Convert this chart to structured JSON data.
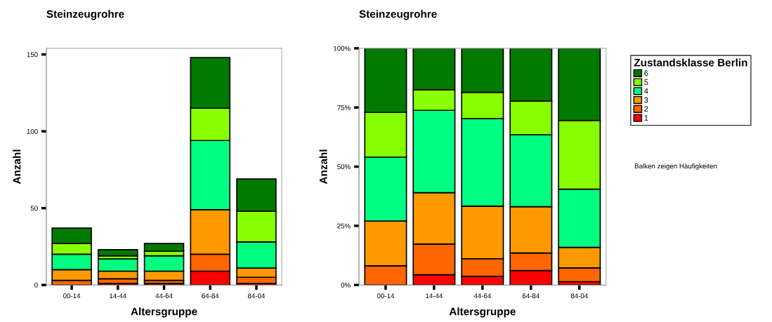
{
  "chart_data": [
    {
      "type": "bar",
      "title": "Steinzeugrohre",
      "xlabel": "Altersgruppe",
      "ylabel": "Anzahl",
      "stacked": true,
      "categories": [
        "00-14",
        "14-44",
        "44-64",
        "64-84",
        "84-04"
      ],
      "ylim": [
        0,
        154
      ],
      "yticks": [
        0,
        50,
        100,
        150
      ],
      "grid": false,
      "legend": "right",
      "series": [
        {
          "name": "1",
          "color": "#ff0000",
          "values": [
            0,
            1,
            1,
            9,
            1
          ]
        },
        {
          "name": "2",
          "color": "#ff6600",
          "values": [
            3,
            3,
            2,
            11,
            4
          ]
        },
        {
          "name": "3",
          "color": "#ff9900",
          "values": [
            7,
            5,
            6,
            29,
            6
          ]
        },
        {
          "name": "4",
          "color": "#00ff80",
          "values": [
            10,
            8,
            10,
            45,
            17
          ]
        },
        {
          "name": "5",
          "color": "#88ff00",
          "values": [
            7,
            2,
            3,
            21,
            20
          ]
        },
        {
          "name": "6",
          "color": "#007a00",
          "values": [
            10,
            4,
            5,
            33,
            21
          ]
        }
      ]
    },
    {
      "type": "bar",
      "title": "Steinzeugrohre",
      "xlabel": "Altersgruppe",
      "ylabel": "Anzahl",
      "stacked": true,
      "categories": [
        "00-14",
        "14-44",
        "44-64",
        "64-84",
        "84-04"
      ],
      "ylim": [
        0,
        100
      ],
      "yticks": [
        {
          "value": 0,
          "label": "0%"
        },
        {
          "value": 25,
          "label": "25%"
        },
        {
          "value": 50,
          "label": "50%"
        },
        {
          "value": 75,
          "label": "75%"
        },
        {
          "value": 100,
          "label": "100%"
        }
      ],
      "grid": false,
      "legend": "right",
      "legend_title": "Zustandsklasse Berlin",
      "annotations": [
        "Balken zeigen Häufigkeiten"
      ],
      "series": [
        {
          "name": "1",
          "color": "#ff0000",
          "values": [
            0,
            4.3,
            3.7,
            6.1,
            1.4
          ]
        },
        {
          "name": "2",
          "color": "#ff6600",
          "values": [
            8.1,
            13.0,
            7.4,
            7.4,
            5.8
          ]
        },
        {
          "name": "3",
          "color": "#ff9900",
          "values": [
            18.9,
            21.7,
            22.2,
            19.6,
            8.7
          ]
        },
        {
          "name": "4",
          "color": "#00ff80",
          "values": [
            27.0,
            34.8,
            37.0,
            30.4,
            24.6
          ]
        },
        {
          "name": "5",
          "color": "#88ff00",
          "values": [
            18.9,
            8.7,
            11.1,
            14.2,
            29.0
          ]
        },
        {
          "name": "6",
          "color": "#007a00",
          "values": [
            27.1,
            17.5,
            18.6,
            22.3,
            30.5
          ]
        }
      ]
    }
  ]
}
